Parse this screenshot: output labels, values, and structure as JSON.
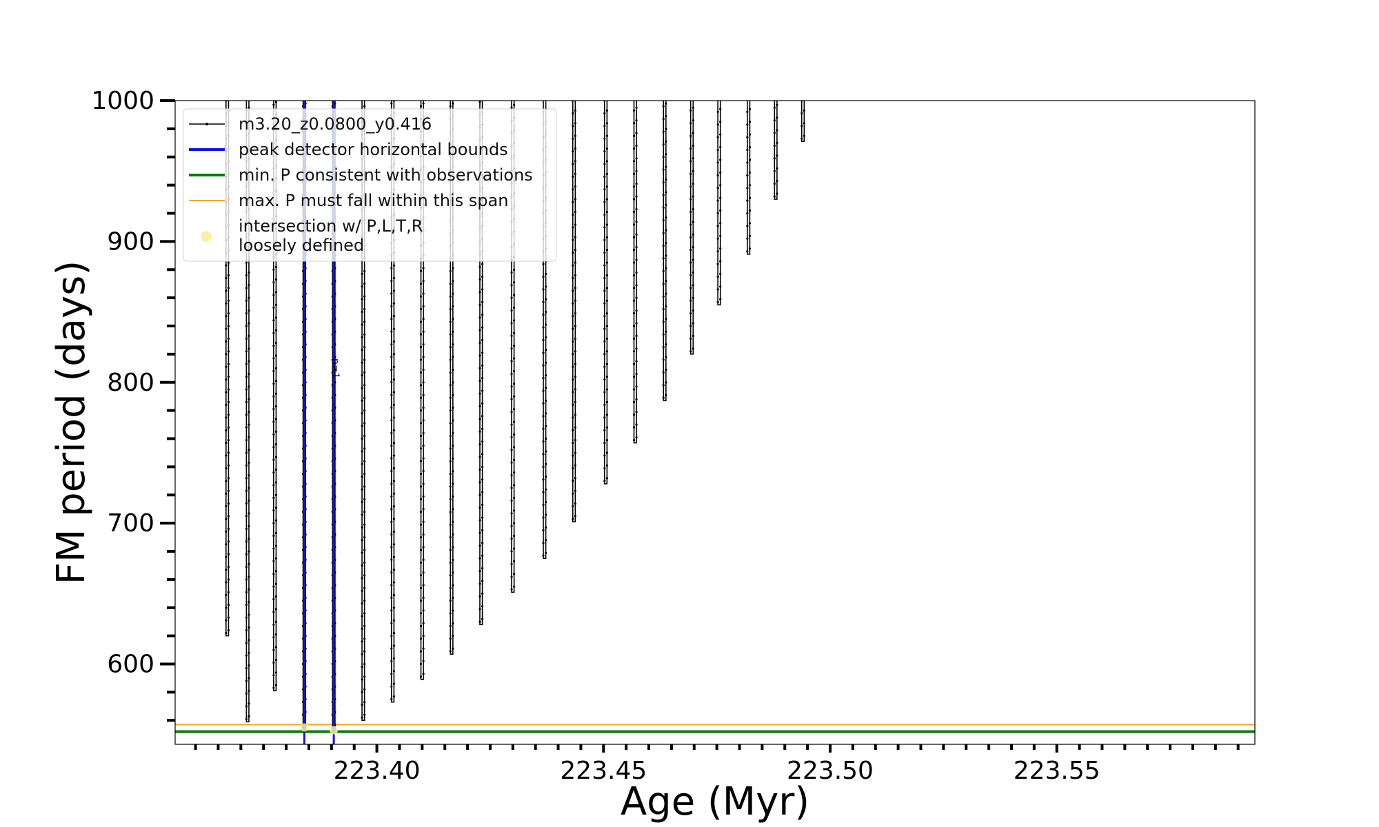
{
  "chart_data": {
    "type": "line",
    "xlabel": "Age (Myr)",
    "ylabel": "FM period (days)",
    "xlim": [
      223.3555,
      223.5937
    ],
    "ylim": [
      543,
      1000
    ],
    "x_major_ticks": [
      223.4,
      223.45,
      223.5,
      223.55
    ],
    "x_tick_labels": [
      "223.40",
      "223.45",
      "223.50",
      "223.55"
    ],
    "x_minor_step": 0.005,
    "y_major_ticks": [
      600,
      700,
      800,
      900,
      1000
    ],
    "y_tick_labels": [
      "600",
      "700",
      "800",
      "900",
      "1000"
    ],
    "y_minor_step": 20,
    "grid": false,
    "legend_position": "top-left",
    "legend": [
      {
        "label": "m3.20_z0.0800_y0.416",
        "style": "black-line-dots"
      },
      {
        "label": "peak detector horizontal bounds",
        "style": "blue-thick-line"
      },
      {
        "label": "min. P consistent with observations",
        "style": "green-thick-line"
      },
      {
        "label": "max. P must fall within this span",
        "style": "orange-thin-line"
      },
      {
        "label": "intersection w/ P,L,T,R\nloosely defined",
        "style": "yellow-marker"
      }
    ],
    "annotation": "n=1",
    "series": [
      {
        "name": "m3.20_z0.0800_y0.416",
        "color": "#000000",
        "spikes": [
          {
            "x": 223.367,
            "min": 620
          },
          {
            "x": 223.3715,
            "min": 559
          },
          {
            "x": 223.3775,
            "min": 581
          },
          {
            "x": 223.384,
            "min": 553
          },
          {
            "x": 223.3905,
            "min": 553
          },
          {
            "x": 223.397,
            "min": 560
          },
          {
            "x": 223.4035,
            "min": 573
          },
          {
            "x": 223.41,
            "min": 589
          },
          {
            "x": 223.4165,
            "min": 607
          },
          {
            "x": 223.423,
            "min": 628
          },
          {
            "x": 223.43,
            "min": 651
          },
          {
            "x": 223.437,
            "min": 675
          },
          {
            "x": 223.4435,
            "min": 701
          },
          {
            "x": 223.4505,
            "min": 728
          },
          {
            "x": 223.457,
            "min": 757
          },
          {
            "x": 223.4635,
            "min": 787
          },
          {
            "x": 223.4695,
            "min": 820
          },
          {
            "x": 223.4755,
            "min": 855
          },
          {
            "x": 223.482,
            "min": 891
          },
          {
            "x": 223.488,
            "min": 930
          },
          {
            "x": 223.494,
            "min": 971
          }
        ]
      }
    ],
    "vertical_lines": {
      "name": "peak detector horizontal bounds",
      "color": "#1414e0",
      "x": [
        223.384,
        223.3905
      ]
    },
    "min_period_line": {
      "name": "min. P consistent with observations",
      "color": "#0a7a0a",
      "y": 552
    },
    "max_period_span": {
      "name": "max. P must fall within this span",
      "color": "#f5a623",
      "y": 557
    },
    "intersections": {
      "color": "#f7f2a0",
      "points": [
        {
          "x": 223.384,
          "y": 555
        },
        {
          "x": 223.3905,
          "y": 553
        }
      ]
    }
  }
}
